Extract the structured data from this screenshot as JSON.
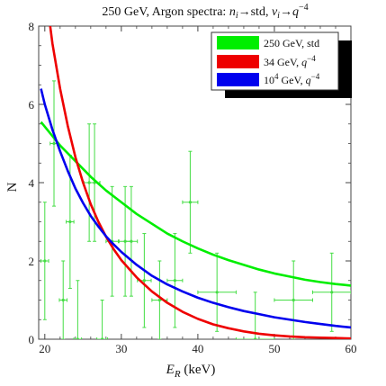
{
  "chart_data": {
    "type": "line",
    "title": {
      "prefix": "250 GeV, Argon spectra: ",
      "n_sym": "n",
      "n_sub": "i",
      "arrow1": "→std, ",
      "v_sym": "ν",
      "v_sub": "i",
      "arrow2": "→",
      "q_sym": "q",
      "q_exp": "−4"
    },
    "xlabel": {
      "sym": "E",
      "sub": "R",
      "unit": " (keV)"
    },
    "ylabel": "N",
    "xlim": [
      19.2,
      60
    ],
    "ylim": [
      0,
      8
    ],
    "x_ticks": [
      20,
      30,
      40,
      50,
      60
    ],
    "y_ticks": [
      0,
      2,
      4,
      6,
      8
    ],
    "grid": false,
    "legend_position": "top-right",
    "series": [
      {
        "name": "250 GeV, std",
        "label": {
          "main": "250 GeV, std",
          "sup": "",
          "post": "",
          "q": "",
          "qexp": ""
        },
        "color": "#00ee00",
        "x": [
          19.5,
          22,
          24,
          26,
          28,
          30,
          32,
          34,
          36,
          38,
          40,
          42,
          44,
          46,
          48,
          50,
          52,
          54,
          56,
          58,
          60
        ],
        "y": [
          5.55,
          4.95,
          4.55,
          4.15,
          3.8,
          3.5,
          3.2,
          2.95,
          2.7,
          2.5,
          2.32,
          2.16,
          2.02,
          1.9,
          1.78,
          1.68,
          1.6,
          1.52,
          1.46,
          1.41,
          1.37
        ]
      },
      {
        "name": "34 GeV, q^-4",
        "label": {
          "main": "34 GeV, ",
          "sup": "",
          "post": "",
          "q": "q",
          "qexp": "−4"
        },
        "color": "#ee0000",
        "x": [
          20.7,
          21,
          22,
          23,
          24,
          25,
          26,
          27,
          28,
          29,
          30,
          32,
          34,
          36,
          38,
          40,
          42,
          44,
          46,
          48,
          50,
          52,
          54,
          56,
          58,
          60
        ],
        "y": [
          8.0,
          7.55,
          6.4,
          5.45,
          4.65,
          4.0,
          3.45,
          3.0,
          2.62,
          2.3,
          2.02,
          1.58,
          1.22,
          0.93,
          0.7,
          0.52,
          0.38,
          0.28,
          0.2,
          0.14,
          0.1,
          0.07,
          0.05,
          0.04,
          0.03,
          0.02
        ]
      },
      {
        "name": "10^4 GeV, q^-4",
        "label": {
          "main": "10",
          "sup": "4",
          "post": " GeV, ",
          "q": "q",
          "qexp": "−4"
        },
        "color": "#0000ee",
        "x": [
          19.5,
          20,
          21,
          22,
          23,
          24,
          25,
          26,
          27,
          28,
          29,
          30,
          32,
          34,
          36,
          38,
          40,
          42,
          44,
          46,
          48,
          50,
          52,
          54,
          56,
          58,
          60
        ],
        "y": [
          6.4,
          6.0,
          5.35,
          4.8,
          4.3,
          3.85,
          3.48,
          3.15,
          2.88,
          2.63,
          2.42,
          2.23,
          1.9,
          1.62,
          1.4,
          1.22,
          1.06,
          0.93,
          0.82,
          0.72,
          0.64,
          0.56,
          0.5,
          0.44,
          0.39,
          0.34,
          0.3
        ]
      }
    ],
    "data_points": {
      "name": "data",
      "color": "#44dd44",
      "points": [
        {
          "x": 20.0,
          "y": 2.0,
          "xerr": 0.5,
          "yerr": 1.5
        },
        {
          "x": 21.2,
          "y": 5.0,
          "xerr": 0.5,
          "yerr": 1.6
        },
        {
          "x": 22.4,
          "y": 1.0,
          "xerr": 0.5,
          "yerr": 1.0
        },
        {
          "x": 23.3,
          "y": 3.0,
          "xerr": 0.5,
          "yerr": 1.7
        },
        {
          "x": 24.3,
          "y": 0.0,
          "xerr": 0.5,
          "yerr": 1.5
        },
        {
          "x": 25.8,
          "y": 4.0,
          "xerr": 0.7,
          "yerr": 1.5
        },
        {
          "x": 26.5,
          "y": 4.0,
          "xerr": 0.7,
          "yerr": 1.5
        },
        {
          "x": 27.5,
          "y": 0.0,
          "xerr": 0.7,
          "yerr": 1.0
        },
        {
          "x": 28.8,
          "y": 2.5,
          "xerr": 0.8,
          "yerr": 1.4
        },
        {
          "x": 30.5,
          "y": 2.5,
          "xerr": 0.8,
          "yerr": 1.4
        },
        {
          "x": 31.3,
          "y": 2.5,
          "xerr": 0.8,
          "yerr": 1.4
        },
        {
          "x": 33.0,
          "y": 1.5,
          "xerr": 0.9,
          "yerr": 1.2
        },
        {
          "x": 35.0,
          "y": 1.0,
          "xerr": 1.0,
          "yerr": 1.0
        },
        {
          "x": 37.0,
          "y": 1.5,
          "xerr": 1.0,
          "yerr": 1.2
        },
        {
          "x": 39.0,
          "y": 3.5,
          "xerr": 1.0,
          "yerr": 1.3
        },
        {
          "x": 42.5,
          "y": 1.2,
          "xerr": 2.5,
          "yerr": 1.0
        },
        {
          "x": 47.5,
          "y": 0.0,
          "xerr": 2.5,
          "yerr": 1.2
        },
        {
          "x": 52.5,
          "y": 1.0,
          "xerr": 2.5,
          "yerr": 1.0
        },
        {
          "x": 57.5,
          "y": 1.2,
          "xerr": 2.5,
          "yerr": 1.0
        }
      ]
    }
  }
}
